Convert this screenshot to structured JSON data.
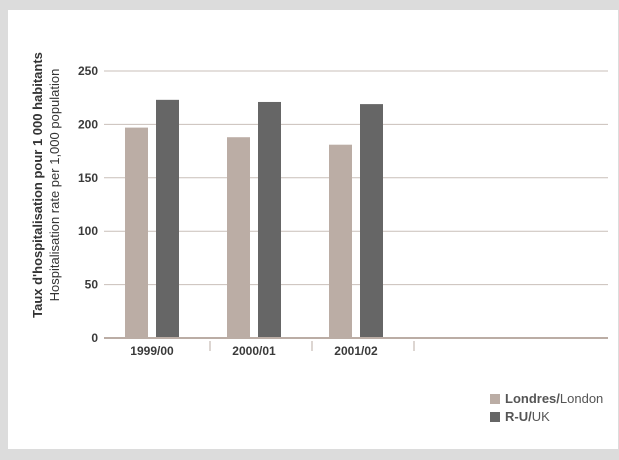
{
  "chart_data": {
    "type": "bar",
    "categories": [
      "1999/00",
      "2000/01",
      "2001/02"
    ],
    "series": [
      {
        "name": "Londres/London",
        "values": [
          197,
          188,
          181
        ],
        "color": "#bbada5"
      },
      {
        "name": "R-U/UK",
        "values": [
          223,
          221,
          219
        ],
        "color": "#666666"
      }
    ],
    "ylabel_fr": "Taux d'hospitalisation pour 1 000 habitants",
    "ylabel_en": "Hospitalisation rate per 1,000 population",
    "yticks": [
      0,
      50,
      100,
      150,
      200,
      250
    ],
    "ylim": [
      0,
      250
    ],
    "grid": true,
    "legend_position": "bottom-right"
  },
  "legend": {
    "london_fr": "Londres/",
    "london_en": "London",
    "uk_fr": "R-U/",
    "uk_en": "UK"
  }
}
